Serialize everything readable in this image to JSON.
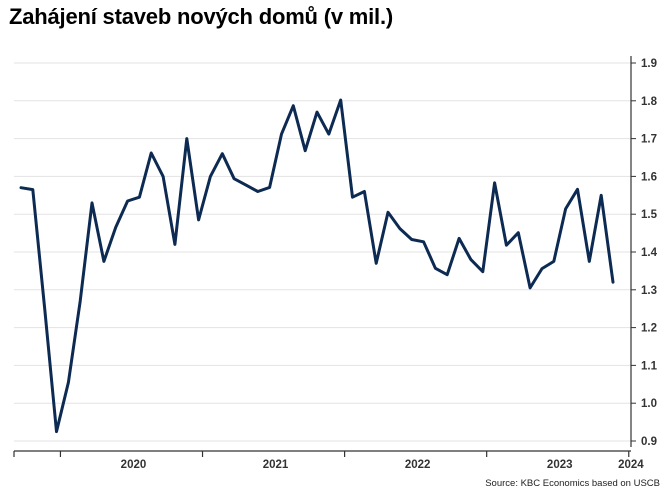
{
  "title": "Zahájení staveb nových domů (v mil.)",
  "source": "Source: KBC Economics based on USCB",
  "colors": {
    "line": "#0d2a52",
    "grid": "#e3e3e3",
    "axis": "#333333"
  },
  "chart_data": {
    "type": "line",
    "title": "Zahájení staveb nových domů (v mil.)",
    "xlabel": "",
    "ylabel": "",
    "grid": true,
    "ylim": [
      0.9,
      1.9
    ],
    "yticks": [
      "0.9",
      "1.0",
      "1.1",
      "1.2",
      "1.3",
      "1.4",
      "1.5",
      "1.6",
      "1.7",
      "1.8",
      "1.9"
    ],
    "xtick_labels": [
      "2020",
      "2021",
      "2022",
      "2023",
      "2024"
    ],
    "x_start": "2019-09",
    "series": [
      {
        "values": [
          1.57,
          1.565,
          1.25,
          0.925,
          1.055,
          1.27,
          1.53,
          1.375,
          1.465,
          1.535,
          1.545,
          1.662,
          1.6,
          1.42,
          1.7,
          1.485,
          1.6,
          1.66,
          1.594,
          1.577,
          1.56,
          1.571,
          1.712,
          1.787,
          1.668,
          1.77,
          1.712,
          1.802,
          1.545,
          1.56,
          1.37,
          1.505,
          1.462,
          1.433,
          1.427,
          1.357,
          1.34,
          1.436,
          1.38,
          1.348,
          1.583,
          1.418,
          1.451,
          1.305,
          1.356,
          1.375,
          1.514,
          1.566,
          1.375,
          1.55,
          1.32
        ]
      }
    ]
  }
}
